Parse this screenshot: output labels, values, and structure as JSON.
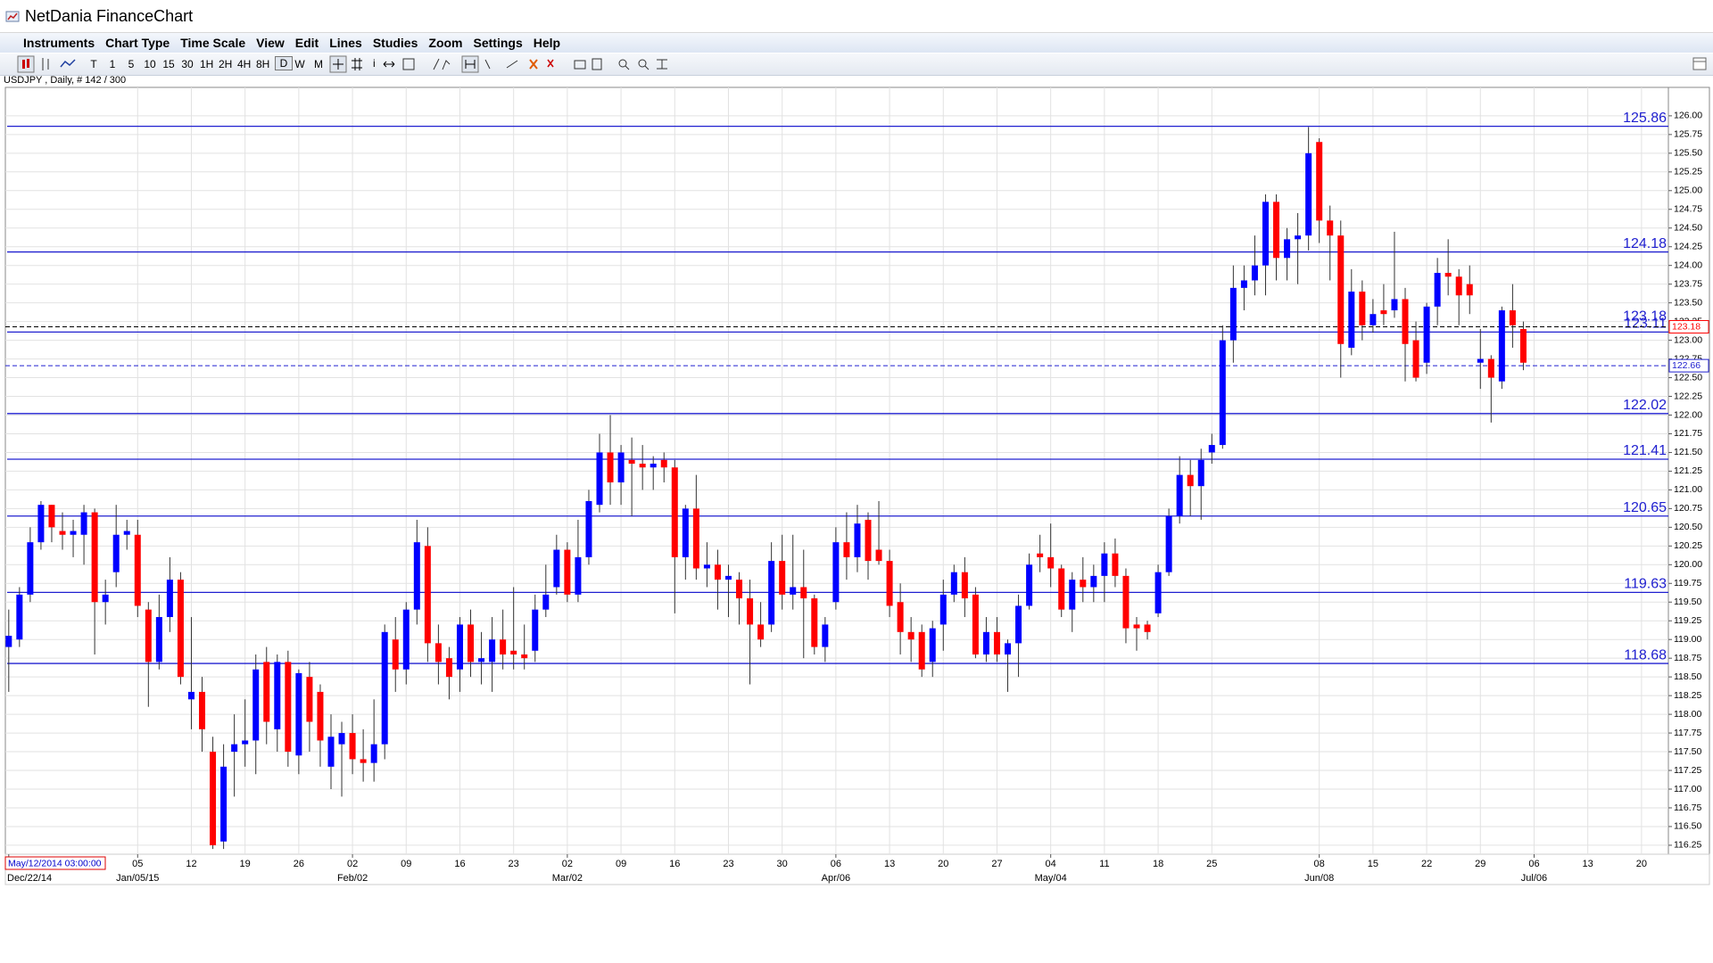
{
  "app": {
    "window_title": "NetDania FinanceChart",
    "menu": [
      "Instruments",
      "Chart Type",
      "Time Scale",
      "View",
      "Edit",
      "Lines",
      "Studies",
      "Zoom",
      "Settings",
      "Help"
    ],
    "toolbar": [
      "T",
      "1",
      "5",
      "10",
      "15",
      "30",
      "1H",
      "2H",
      "4H",
      "8H",
      "D",
      "W",
      "M"
    ],
    "symbol_info": "USDJPY , Daily, # 142 / 300",
    "cursor_time": "May/12/2014 03:00:00"
  },
  "chart_data": {
    "type": "candlestick",
    "up_color": "#0000ff",
    "down_color": "#ff0000",
    "wick_color": "#333333",
    "level_color": "#2020d0",
    "candles": [
      [
        118.9,
        119.4,
        118.3,
        119.05
      ],
      [
        119.0,
        119.7,
        118.9,
        119.6
      ],
      [
        119.6,
        120.5,
        119.5,
        120.3
      ],
      [
        120.3,
        120.85,
        120.2,
        120.8
      ],
      [
        120.8,
        120.8,
        120.3,
        120.5
      ],
      [
        120.45,
        120.7,
        120.2,
        120.4
      ],
      [
        120.4,
        120.6,
        120.1,
        120.45
      ],
      [
        120.4,
        120.8,
        120.0,
        120.7
      ],
      [
        120.7,
        120.75,
        118.8,
        119.5
      ],
      [
        119.5,
        119.8,
        119.2,
        119.6
      ],
      [
        119.9,
        120.8,
        119.7,
        120.4
      ],
      [
        120.4,
        120.6,
        120.2,
        120.45
      ],
      [
        120.4,
        120.6,
        119.3,
        119.45
      ],
      [
        119.4,
        119.5,
        118.1,
        118.7
      ],
      [
        118.7,
        119.6,
        118.6,
        119.3
      ],
      [
        119.3,
        120.1,
        119.1,
        119.8
      ],
      [
        119.8,
        119.9,
        118.4,
        118.5
      ],
      [
        118.2,
        119.3,
        117.8,
        118.3
      ],
      [
        118.3,
        118.5,
        117.5,
        117.8
      ],
      [
        117.5,
        117.7,
        116.2,
        116.25
      ],
      [
        116.3,
        117.6,
        116.2,
        117.3
      ],
      [
        117.5,
        118.0,
        116.9,
        117.6
      ],
      [
        117.6,
        118.2,
        117.3,
        117.65
      ],
      [
        117.65,
        118.8,
        117.2,
        118.6
      ],
      [
        118.7,
        118.9,
        117.6,
        117.9
      ],
      [
        117.8,
        118.8,
        117.5,
        118.7
      ],
      [
        118.7,
        118.85,
        117.3,
        117.5
      ],
      [
        117.45,
        118.6,
        117.2,
        118.55
      ],
      [
        118.5,
        118.7,
        117.5,
        117.9
      ],
      [
        118.3,
        118.4,
        117.3,
        117.65
      ],
      [
        117.3,
        118.0,
        117.0,
        117.7
      ],
      [
        117.6,
        117.9,
        116.9,
        117.75
      ],
      [
        117.75,
        118.0,
        117.2,
        117.4
      ],
      [
        117.4,
        117.8,
        117.1,
        117.35
      ],
      [
        117.35,
        118.2,
        117.1,
        117.6
      ],
      [
        117.6,
        119.2,
        117.4,
        119.1
      ],
      [
        119.0,
        119.3,
        118.3,
        118.6
      ],
      [
        118.6,
        119.5,
        118.4,
        119.4
      ],
      [
        119.4,
        120.6,
        119.2,
        120.3
      ],
      [
        120.25,
        120.5,
        118.7,
        118.95
      ],
      [
        118.95,
        119.2,
        118.4,
        118.7
      ],
      [
        118.75,
        118.9,
        118.2,
        118.5
      ],
      [
        118.6,
        119.3,
        118.3,
        119.2
      ],
      [
        119.2,
        119.4,
        118.5,
        118.7
      ],
      [
        118.7,
        119.1,
        118.4,
        118.75
      ],
      [
        118.7,
        119.3,
        118.3,
        119.0
      ],
      [
        119.0,
        119.4,
        118.6,
        118.8
      ],
      [
        118.85,
        119.7,
        118.6,
        118.8
      ],
      [
        118.8,
        119.2,
        118.6,
        118.75
      ],
      [
        118.85,
        119.6,
        118.7,
        119.4
      ],
      [
        119.4,
        120.0,
        119.3,
        119.6
      ],
      [
        119.7,
        120.4,
        119.6,
        120.2
      ],
      [
        120.2,
        120.3,
        119.5,
        119.6
      ],
      [
        119.6,
        120.6,
        119.5,
        120.1
      ],
      [
        120.1,
        121.0,
        120.0,
        120.85
      ],
      [
        120.8,
        121.75,
        120.7,
        121.5
      ],
      [
        121.5,
        122.0,
        120.8,
        121.1
      ],
      [
        121.1,
        121.6,
        120.8,
        121.5
      ],
      [
        121.4,
        121.7,
        120.65,
        121.35
      ],
      [
        121.35,
        121.6,
        121.0,
        121.3
      ],
      [
        121.3,
        121.45,
        121.0,
        121.35
      ],
      [
        121.4,
        121.5,
        121.1,
        121.3
      ],
      [
        121.3,
        121.4,
        119.35,
        120.1
      ],
      [
        120.1,
        120.8,
        119.8,
        120.75
      ],
      [
        120.75,
        121.2,
        119.8,
        119.95
      ],
      [
        119.95,
        120.3,
        119.7,
        120.0
      ],
      [
        120.0,
        120.2,
        119.4,
        119.8
      ],
      [
        119.8,
        120.0,
        119.3,
        119.85
      ],
      [
        119.8,
        119.9,
        119.2,
        119.55
      ],
      [
        119.55,
        119.8,
        118.4,
        119.2
      ],
      [
        119.2,
        119.5,
        118.9,
        119.0
      ],
      [
        119.2,
        120.3,
        119.1,
        120.05
      ],
      [
        120.05,
        120.4,
        119.4,
        119.6
      ],
      [
        119.6,
        120.4,
        119.4,
        119.7
      ],
      [
        119.7,
        120.2,
        118.75,
        119.55
      ],
      [
        119.55,
        119.6,
        118.8,
        118.9
      ],
      [
        118.9,
        119.3,
        118.7,
        119.2
      ],
      [
        119.5,
        120.5,
        119.4,
        120.3
      ],
      [
        120.3,
        120.7,
        119.8,
        120.1
      ],
      [
        120.1,
        120.8,
        119.9,
        120.55
      ],
      [
        120.6,
        120.7,
        119.8,
        120.05
      ],
      [
        120.2,
        120.85,
        120.0,
        120.05
      ],
      [
        120.05,
        120.2,
        119.3,
        119.45
      ],
      [
        119.5,
        119.75,
        118.8,
        119.1
      ],
      [
        119.1,
        119.3,
        118.7,
        119.0
      ],
      [
        119.1,
        119.2,
        118.5,
        118.6
      ],
      [
        118.7,
        119.25,
        118.5,
        119.15
      ],
      [
        119.2,
        119.8,
        118.85,
        119.6
      ],
      [
        119.6,
        120.0,
        119.5,
        119.9
      ],
      [
        119.9,
        120.1,
        119.3,
        119.55
      ],
      [
        119.6,
        119.7,
        118.75,
        118.8
      ],
      [
        118.8,
        119.3,
        118.7,
        119.1
      ],
      [
        119.1,
        119.3,
        118.7,
        118.8
      ],
      [
        118.8,
        119.0,
        118.3,
        118.95
      ],
      [
        118.95,
        119.6,
        118.5,
        119.45
      ],
      [
        119.45,
        120.15,
        119.4,
        120.0
      ],
      [
        120.15,
        120.4,
        119.9,
        120.1
      ],
      [
        120.1,
        120.55,
        119.7,
        119.95
      ],
      [
        119.95,
        120.0,
        119.3,
        119.4
      ],
      [
        119.4,
        119.9,
        119.1,
        119.8
      ],
      [
        119.8,
        120.1,
        119.5,
        119.7
      ],
      [
        119.7,
        120.0,
        119.5,
        119.85
      ],
      [
        119.85,
        120.3,
        119.5,
        120.15
      ],
      [
        120.15,
        120.35,
        119.7,
        119.85
      ],
      [
        119.85,
        119.95,
        118.95,
        119.15
      ],
      [
        119.2,
        119.3,
        118.85,
        119.15
      ],
      [
        119.2,
        119.25,
        119.0,
        119.1
      ],
      [
        119.35,
        120.0,
        119.3,
        119.9
      ],
      [
        119.9,
        120.75,
        119.85,
        120.65
      ],
      [
        120.65,
        121.45,
        120.55,
        121.2
      ],
      [
        121.2,
        121.4,
        120.65,
        121.05
      ],
      [
        121.05,
        121.55,
        120.6,
        121.4
      ],
      [
        121.5,
        121.75,
        121.35,
        121.6
      ],
      [
        121.6,
        123.2,
        121.55,
        123.0
      ],
      [
        123.0,
        124.0,
        122.7,
        123.7
      ],
      [
        123.7,
        124.0,
        123.4,
        123.8
      ],
      [
        123.8,
        124.4,
        123.6,
        124.0
      ],
      [
        124.0,
        124.95,
        123.6,
        124.85
      ],
      [
        124.85,
        124.95,
        123.8,
        124.1
      ],
      [
        124.1,
        124.5,
        123.8,
        124.35
      ],
      [
        124.35,
        124.7,
        123.75,
        124.4
      ],
      [
        124.4,
        125.85,
        124.2,
        125.5
      ],
      [
        125.65,
        125.7,
        124.3,
        124.6
      ],
      [
        124.6,
        124.8,
        123.8,
        124.4
      ],
      [
        124.4,
        124.6,
        122.5,
        122.95
      ],
      [
        122.9,
        123.95,
        122.8,
        123.65
      ],
      [
        123.65,
        123.8,
        123.0,
        123.2
      ],
      [
        123.2,
        123.55,
        123.1,
        123.35
      ],
      [
        123.4,
        123.75,
        123.2,
        123.35
      ],
      [
        123.4,
        124.45,
        123.3,
        123.55
      ],
      [
        123.55,
        123.7,
        122.45,
        122.95
      ],
      [
        123.0,
        123.25,
        122.45,
        122.5
      ],
      [
        122.7,
        123.5,
        122.55,
        123.45
      ],
      [
        123.45,
        124.1,
        123.2,
        123.9
      ],
      [
        123.9,
        124.35,
        123.6,
        123.85
      ],
      [
        123.85,
        123.95,
        123.2,
        123.6
      ],
      [
        123.75,
        124.0,
        123.35,
        123.6
      ],
      [
        122.7,
        123.15,
        122.35,
        122.75
      ],
      [
        122.75,
        122.8,
        121.9,
        122.5
      ],
      [
        122.45,
        123.45,
        122.35,
        123.4
      ],
      [
        123.4,
        123.75,
        122.9,
        123.2
      ],
      [
        123.15,
        123.25,
        122.6,
        122.7
      ],
      null,
      null,
      null,
      null,
      null,
      null,
      null,
      null,
      null,
      null,
      null
    ],
    "categories": [
      null,
      null,
      null,
      null,
      null,
      null,
      null,
      null,
      null,
      null,
      null,
      null,
      "05",
      null,
      null,
      null,
      null,
      "12",
      null,
      null,
      null,
      null,
      "19",
      null,
      null,
      null,
      null,
      "26",
      null,
      null,
      null,
      null,
      "02",
      null,
      null,
      null,
      null,
      "09",
      null,
      null,
      null,
      null,
      "16",
      null,
      null,
      null,
      null,
      "23",
      null,
      null,
      null,
      null,
      "02",
      null,
      null,
      null,
      null,
      "09",
      null,
      null,
      null,
      null,
      "16",
      null,
      null,
      null,
      null,
      "23",
      null,
      null,
      null,
      null,
      "30",
      null,
      null,
      null,
      null,
      "06",
      null,
      null,
      null,
      null,
      "13",
      null,
      null,
      null,
      null,
      "20",
      null,
      null,
      null,
      null,
      "27",
      null,
      null,
      null,
      null,
      "04",
      null,
      null,
      null,
      null,
      "11",
      null,
      null,
      null,
      null,
      "18",
      null,
      null,
      null,
      null,
      "25",
      null,
      null,
      null,
      null,
      null,
      null,
      null,
      null,
      null,
      "08",
      null,
      null,
      null,
      null,
      "15",
      null,
      null,
      null,
      null,
      "22",
      null,
      null,
      null,
      null,
      "29",
      null,
      null,
      null,
      null,
      "06",
      null,
      null,
      null,
      null,
      "13",
      null,
      null,
      null,
      null,
      "20"
    ],
    "period_labels": [
      "Dec/22/14",
      null,
      null,
      null,
      null,
      null,
      null,
      null,
      null,
      null,
      null,
      null,
      "Jan/05/15",
      null,
      null,
      null,
      null,
      null,
      null,
      null,
      null,
      null,
      null,
      null,
      null,
      null,
      null,
      null,
      null,
      null,
      null,
      null,
      "Feb/02",
      null,
      null,
      null,
      null,
      null,
      null,
      null,
      null,
      null,
      null,
      null,
      null,
      null,
      null,
      null,
      null,
      null,
      null,
      null,
      "Mar/02",
      null,
      null,
      null,
      null,
      null,
      null,
      null,
      null,
      null,
      null,
      null,
      null,
      null,
      null,
      null,
      null,
      null,
      null,
      null,
      null,
      null,
      null,
      null,
      null,
      "Apr/06",
      null,
      null,
      null,
      null,
      null,
      null,
      null,
      null,
      null,
      null,
      null,
      null,
      null,
      null,
      null,
      null,
      null,
      null,
      null,
      "May/04",
      null,
      null,
      null,
      null,
      null,
      null,
      null,
      null,
      null,
      null,
      null,
      null,
      null,
      null,
      null,
      null,
      null,
      null,
      null,
      null,
      null,
      null,
      null,
      null,
      "Jun/08",
      null,
      null,
      null,
      null,
      null,
      null,
      null,
      null,
      null,
      null,
      null,
      null,
      null,
      null,
      null,
      null,
      null,
      null,
      null,
      "Jul/06",
      null,
      null,
      null,
      null,
      null,
      null,
      null,
      null,
      null,
      null
    ],
    "levels": [
      125.86,
      124.18,
      123.11,
      122.02,
      121.41,
      120.65,
      119.63,
      118.68
    ],
    "current_price": 123.18,
    "marker_price": 122.66,
    "ylim": [
      116.13,
      126.38
    ],
    "yticks": [
      116.25,
      {
        "value": 116.5,
        "label": "116.50"
      },
      116.75,
      {
        "value": 117,
        "label": "117.00"
      },
      117.25,
      {
        "value": 117.5,
        "label": "117.50"
      },
      117.75,
      {
        "value": 118,
        "label": "118.00"
      },
      118.25,
      {
        "value": 118.5,
        "label": "118.50"
      },
      118.75,
      {
        "value": 119,
        "label": "119.00"
      },
      119.25,
      {
        "value": 119.5,
        "label": "119.50"
      },
      119.75,
      {
        "value": 120,
        "label": "120.00"
      },
      120.25,
      {
        "value": 120.5,
        "label": "120.50"
      },
      120.75,
      {
        "value": 121,
        "label": "121.00"
      },
      121.25,
      {
        "value": 121.5,
        "label": "121.50"
      },
      121.75,
      {
        "value": 122,
        "label": "122.00"
      },
      122.25,
      {
        "value": 122.5,
        "label": "122.50"
      },
      122.75,
      {
        "value": 123,
        "label": "123.00"
      },
      123.25,
      {
        "value": 123.5,
        "label": "123.50"
      },
      123.75,
      {
        "value": 124,
        "label": "124.00"
      },
      124.25,
      {
        "value": 124.5,
        "label": "124.50"
      },
      124.75,
      {
        "value": 125,
        "label": "125.00"
      },
      125.25,
      {
        "value": 125.5,
        "label": "125.50"
      },
      125.75,
      {
        "value": 126,
        "label": "126.00"
      }
    ],
    "grid": true
  }
}
